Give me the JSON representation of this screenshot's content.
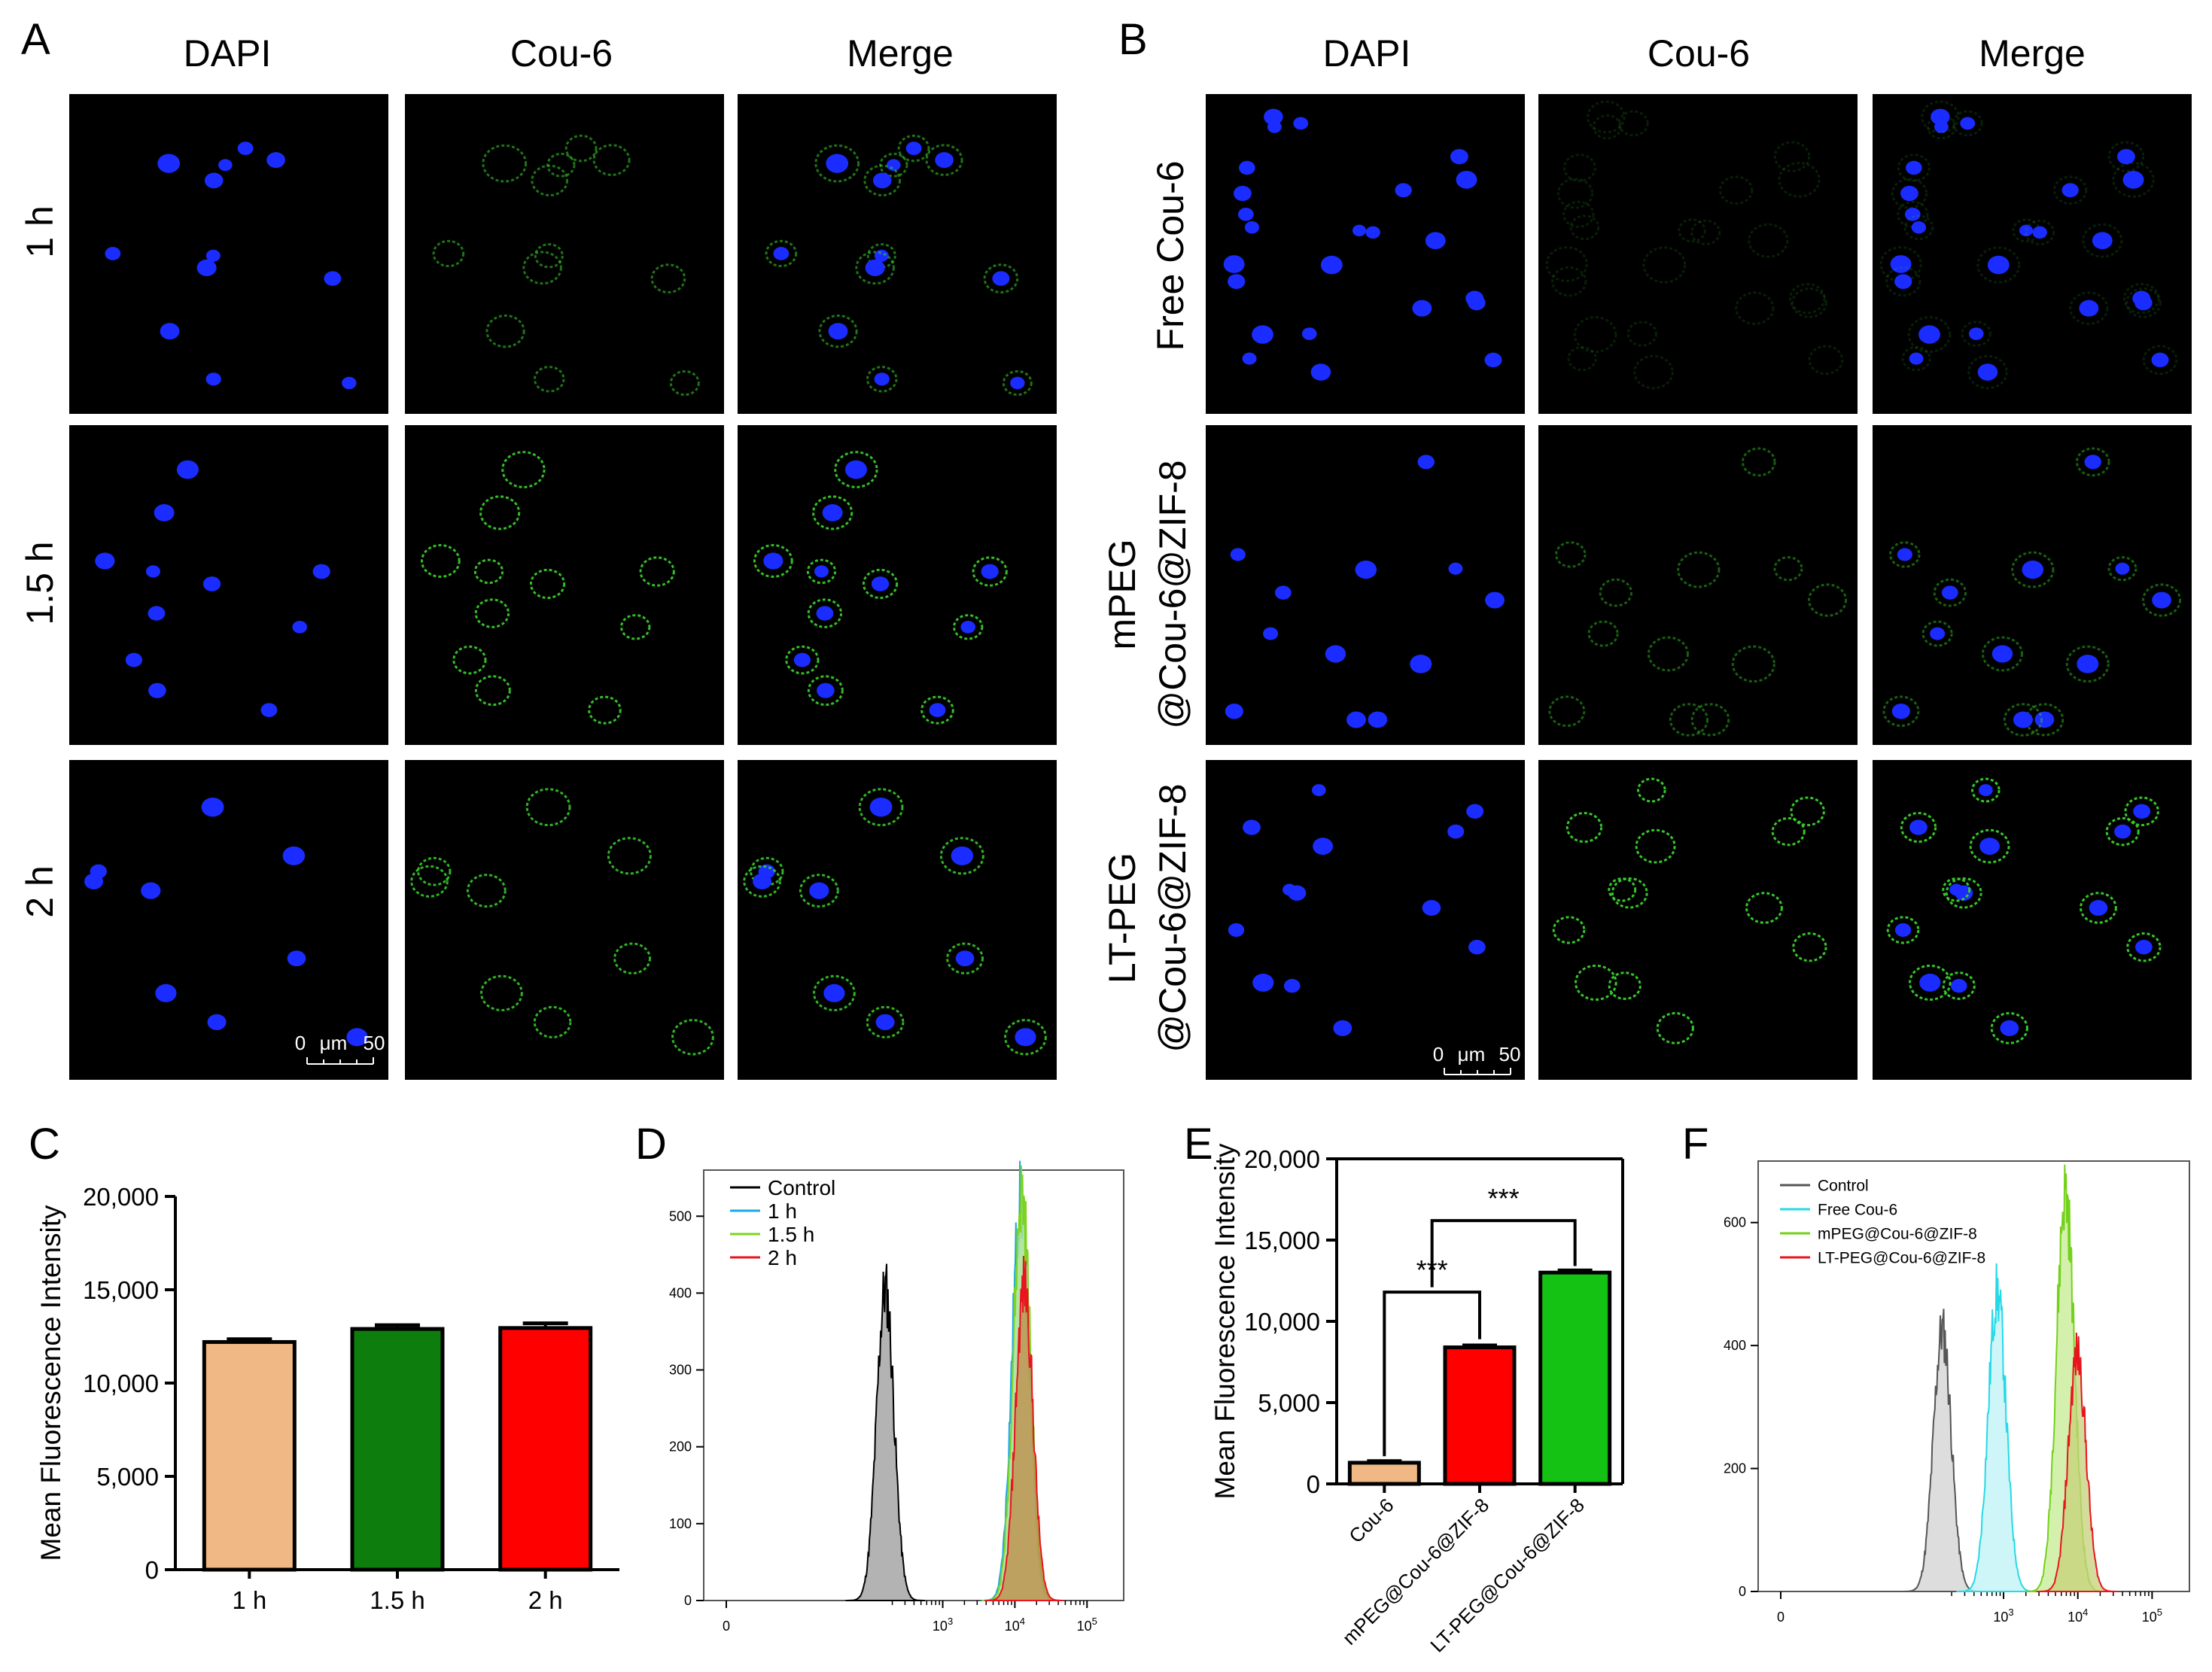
{
  "panel_letters": [
    "A",
    "B",
    "C",
    "D",
    "E",
    "F"
  ],
  "panel_A": {
    "columns": [
      "DAPI",
      "Cou-6",
      "Merge"
    ],
    "rows": [
      "1 h",
      "1.5 h",
      "2 h"
    ],
    "scale_bar": {
      "zero": "0",
      "unit": "μm",
      "value": "50"
    }
  },
  "panel_B": {
    "columns": [
      "DAPI",
      "Cou-6",
      "Merge"
    ],
    "rows": [
      {
        "line1": "Free Cou-6",
        "line2": ""
      },
      {
        "line1": "mPEG",
        "line2": "@Cou-6@ZIF-8"
      },
      {
        "line1": "LT-PEG",
        "line2": "@Cou-6@ZIF-8"
      }
    ],
    "scale_bar": {
      "zero": "0",
      "unit": "μm",
      "value": "50"
    }
  },
  "colors": {
    "dapi_blue": "#1a2cff",
    "cou6_green": "#38d12b",
    "bar_1h": "#f0b884",
    "bar_15h": "#0d7d0d",
    "bar_2h": "#ff0000",
    "bar_E_cou6": "#f0b884",
    "bar_E_mpeg": "#ff0000",
    "bar_E_lt": "#14c214"
  },
  "chart_data": [
    {
      "id": "C",
      "type": "bar",
      "categories": [
        "1 h",
        "1.5 h",
        "2 h"
      ],
      "values": [
        12200,
        12900,
        12950
      ],
      "errors": [
        150,
        200,
        250
      ],
      "ylabel": "Mean Fluorescence Intensity",
      "ylim": [
        0,
        20000
      ],
      "yticks": [
        "0",
        "5,000",
        "10,000",
        "15,000",
        "20,000"
      ]
    },
    {
      "id": "D",
      "type": "area",
      "xscale": "log",
      "xticks": [
        "0",
        "10",
        "10",
        "10"
      ],
      "xtick_exp": [
        "",
        "3",
        "4",
        "5"
      ],
      "yticks": [
        "0",
        "100",
        "200",
        "300",
        "400",
        "500"
      ],
      "ylim": [
        0,
        560
      ],
      "legend": [
        "Control",
        "1 h",
        "1.5 h",
        "2 h"
      ],
      "series": [
        {
          "name": "Control",
          "peak_x": 160,
          "peak_y": 405,
          "color": "#000000",
          "fill": "#9a9a9a"
        },
        {
          "name": "1 h",
          "peak_x": 12000,
          "peak_y": 520,
          "color": "#1aa7e8",
          "fill": "#7fd6f5"
        },
        {
          "name": "1.5 h",
          "peak_x": 12500,
          "peak_y": 530,
          "color": "#7ed321",
          "fill": "#b7e88a"
        },
        {
          "name": "2 h",
          "peak_x": 13500,
          "peak_y": 410,
          "color": "#e8141e",
          "fill": "#c08a4a"
        }
      ]
    },
    {
      "id": "E",
      "type": "bar",
      "categories": [
        "Cou-6",
        "mPEG@Cou-6@ZIF-8",
        "LT-PEG@Cou-6@ZIF-8"
      ],
      "values": [
        1300,
        8400,
        13000
      ],
      "errors": [
        100,
        120,
        130
      ],
      "ylabel": "Mean Fluorescence Intensity",
      "ylim": [
        0,
        20000
      ],
      "yticks": [
        "0",
        "5,000",
        "10,000",
        "15,000",
        "20,000"
      ],
      "significance": [
        "***",
        "***"
      ]
    },
    {
      "id": "F",
      "type": "area",
      "xscale": "log",
      "xticks": [
        "0",
        "10",
        "10",
        "10"
      ],
      "xtick_exp": [
        "",
        "3",
        "4",
        "5"
      ],
      "yticks": [
        "0",
        "200",
        "400",
        "600"
      ],
      "ylim": [
        0,
        700
      ],
      "legend": [
        "Control",
        "Free Cou-6",
        "mPEG@Cou-6@ZIF-8",
        "LT-PEG@Cou-6@ZIF-8"
      ],
      "series": [
        {
          "name": "Control",
          "peak_x": 150,
          "peak_y": 425,
          "color": "#555555",
          "fill": "#d2d2d2"
        },
        {
          "name": "Free Cou-6",
          "peak_x": 820,
          "peak_y": 485,
          "color": "#26d9e6",
          "fill": "#bdf3f6"
        },
        {
          "name": "mPEG@Cou-6@ZIF-8",
          "peak_x": 6800,
          "peak_y": 650,
          "color": "#74d11a",
          "fill": "#c4ec92"
        },
        {
          "name": "LT-PEG@Cou-6@ZIF-8",
          "peak_x": 9800,
          "peak_y": 385,
          "color": "#e8141e",
          "fill": "#c5d07a"
        }
      ]
    }
  ]
}
